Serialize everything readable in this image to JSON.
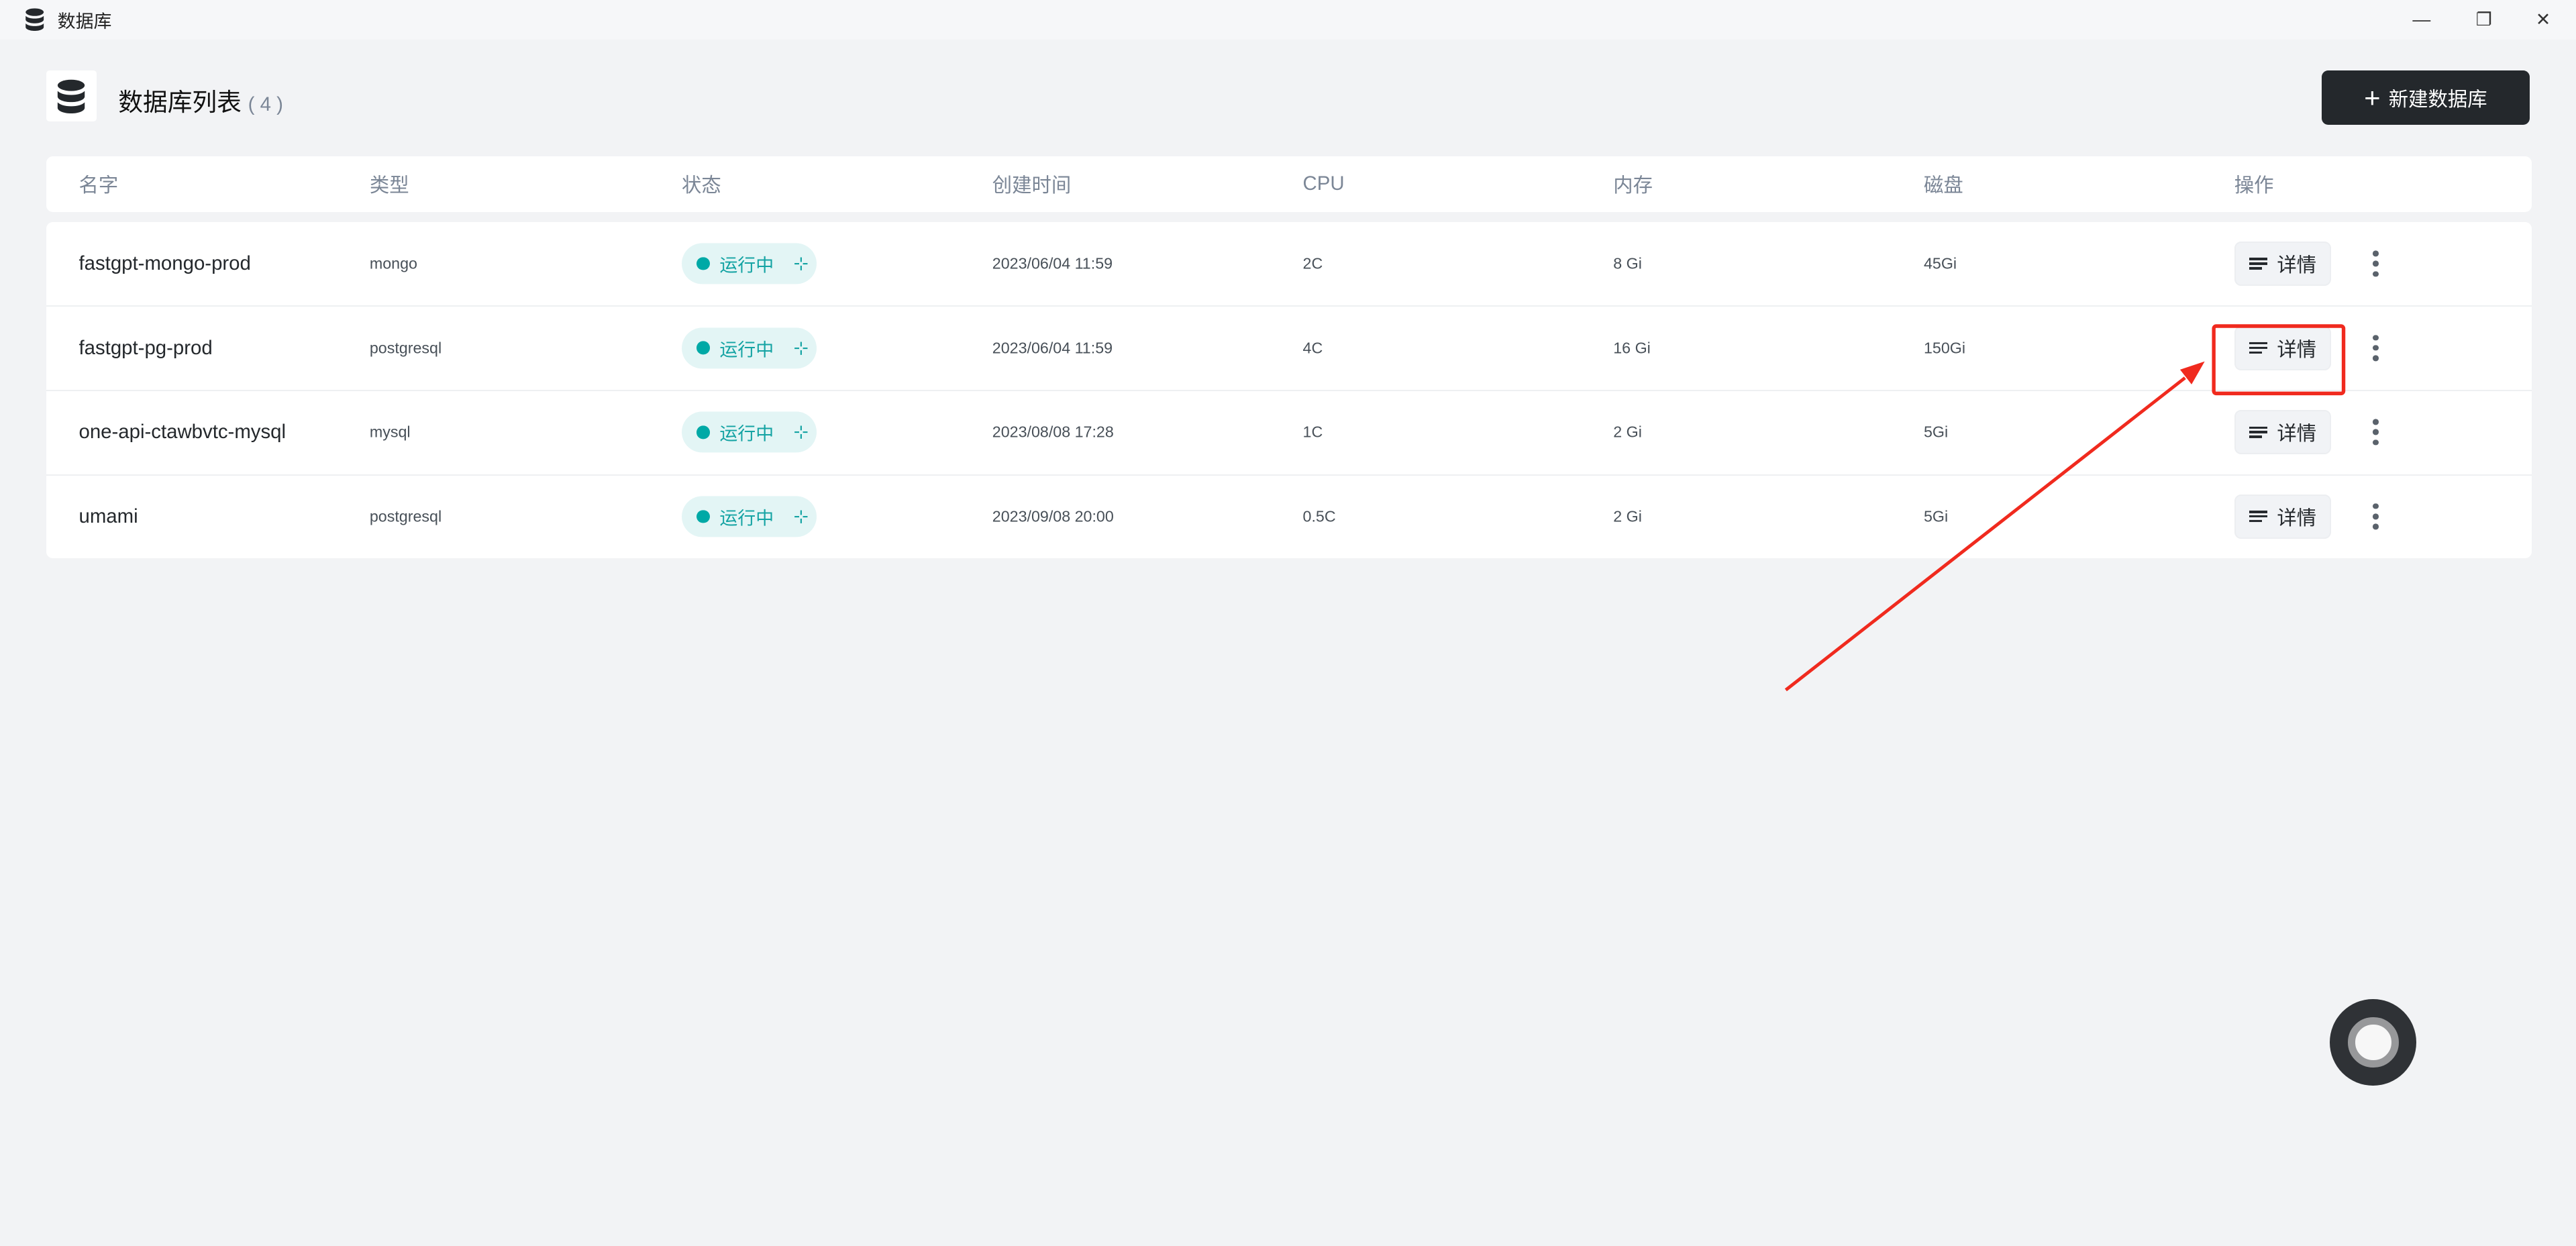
{
  "window": {
    "title": "数据库",
    "minimize": "—",
    "restore": "❐",
    "close": "✕"
  },
  "header": {
    "title": "数据库列表",
    "count": "( 4 )",
    "new_button": "新建数据库",
    "new_icon": "+"
  },
  "table": {
    "columns": [
      "名字",
      "类型",
      "状态",
      "创建时间",
      "CPU",
      "内存",
      "磁盘",
      "操作"
    ],
    "rows": [
      {
        "name": "fastgpt-mongo-prod",
        "type": "mongo",
        "status": "运行中",
        "created": "2023/06/04 11:59",
        "cpu": "2C",
        "memory": "8 Gi",
        "disk": "45Gi"
      },
      {
        "name": "fastgpt-pg-prod",
        "type": "postgresql",
        "status": "运行中",
        "created": "2023/06/04 11:59",
        "cpu": "4C",
        "memory": "16 Gi",
        "disk": "150Gi"
      },
      {
        "name": "one-api-ctawbvtc-mysql",
        "type": "mysql",
        "status": "运行中",
        "created": "2023/08/08 17:28",
        "cpu": "1C",
        "memory": "2 Gi",
        "disk": "5Gi"
      },
      {
        "name": "umami",
        "type": "postgresql",
        "status": "运行中",
        "created": "2023/09/08 20:00",
        "cpu": "0.5C",
        "memory": "2 Gi",
        "disk": "5Gi"
      }
    ],
    "detail_label": "详情",
    "status_spark": "⊹"
  },
  "colors": {
    "accent": "#00a9a6",
    "primary_button": "#24282c",
    "annotation": "#f02a1e"
  }
}
